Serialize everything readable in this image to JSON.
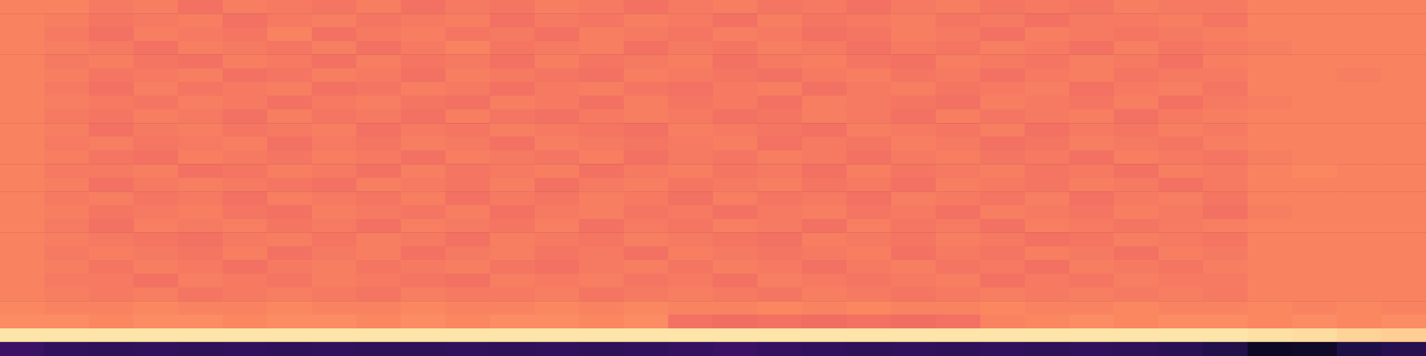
{
  "chart_data": {
    "type": "heatmap",
    "tick_labels": false,
    "grid": false,
    "color_range": [
      0,
      1
    ],
    "cells": [
      [
        0.74,
        0.74,
        0.72,
        0.73,
        0.7,
        0.73,
        0.72,
        0.71,
        0.73,
        0.7,
        0.72,
        0.71,
        0.73,
        0.72,
        0.7,
        0.72,
        0.73,
        0.71,
        0.72,
        0.7,
        0.72,
        0.73,
        0.71,
        0.72,
        0.71,
        0.73,
        0.72,
        0.72,
        0.74,
        0.74,
        0.74,
        0.74
      ],
      [
        0.74,
        0.73,
        0.71,
        0.72,
        0.73,
        0.7,
        0.72,
        0.73,
        0.71,
        0.72,
        0.73,
        0.7,
        0.72,
        0.71,
        0.73,
        0.72,
        0.7,
        0.73,
        0.71,
        0.72,
        0.73,
        0.71,
        0.72,
        0.7,
        0.72,
        0.72,
        0.73,
        0.71,
        0.74,
        0.74,
        0.74,
        0.74
      ],
      [
        0.74,
        0.72,
        0.7,
        0.73,
        0.72,
        0.71,
        0.74,
        0.7,
        0.72,
        0.73,
        0.71,
        0.72,
        0.7,
        0.73,
        0.72,
        0.71,
        0.73,
        0.72,
        0.7,
        0.71,
        0.73,
        0.72,
        0.7,
        0.73,
        0.72,
        0.71,
        0.72,
        0.73,
        0.74,
        0.74,
        0.74,
        0.74
      ],
      [
        0.74,
        0.73,
        0.72,
        0.7,
        0.73,
        0.72,
        0.71,
        0.73,
        0.7,
        0.72,
        0.74,
        0.71,
        0.72,
        0.73,
        0.7,
        0.72,
        0.71,
        0.73,
        0.72,
        0.7,
        0.72,
        0.71,
        0.73,
        0.72,
        0.7,
        0.73,
        0.71,
        0.72,
        0.73,
        0.74,
        0.74,
        0.74
      ],
      [
        0.74,
        0.72,
        0.73,
        0.71,
        0.7,
        0.73,
        0.72,
        0.7,
        0.73,
        0.71,
        0.72,
        0.7,
        0.73,
        0.71,
        0.72,
        0.73,
        0.7,
        0.72,
        0.73,
        0.71,
        0.7,
        0.73,
        0.72,
        0.71,
        0.73,
        0.72,
        0.7,
        0.73,
        0.74,
        0.74,
        0.74,
        0.74
      ],
      [
        0.74,
        0.73,
        0.71,
        0.72,
        0.73,
        0.7,
        0.71,
        0.73,
        0.72,
        0.7,
        0.73,
        0.72,
        0.71,
        0.7,
        0.73,
        0.72,
        0.71,
        0.7,
        0.72,
        0.73,
        0.71,
        0.72,
        0.7,
        0.72,
        0.73,
        0.71,
        0.72,
        0.72,
        0.74,
        0.74,
        0.73,
        0.74
      ],
      [
        0.74,
        0.72,
        0.7,
        0.73,
        0.71,
        0.72,
        0.73,
        0.7,
        0.71,
        0.73,
        0.72,
        0.7,
        0.72,
        0.73,
        0.71,
        0.7,
        0.72,
        0.73,
        0.7,
        0.72,
        0.73,
        0.71,
        0.72,
        0.73,
        0.7,
        0.72,
        0.73,
        0.71,
        0.74,
        0.74,
        0.74,
        0.74
      ],
      [
        0.74,
        0.73,
        0.72,
        0.71,
        0.73,
        0.72,
        0.7,
        0.72,
        0.73,
        0.71,
        0.7,
        0.73,
        0.72,
        0.7,
        0.73,
        0.71,
        0.72,
        0.7,
        0.73,
        0.72,
        0.71,
        0.7,
        0.73,
        0.72,
        0.71,
        0.73,
        0.7,
        0.72,
        0.73,
        0.74,
        0.74,
        0.74
      ],
      [
        0.74,
        0.72,
        0.71,
        0.73,
        0.72,
        0.7,
        0.73,
        0.71,
        0.72,
        0.7,
        0.73,
        0.71,
        0.7,
        0.72,
        0.73,
        0.72,
        0.7,
        0.71,
        0.73,
        0.72,
        0.7,
        0.73,
        0.71,
        0.72,
        0.73,
        0.7,
        0.72,
        0.73,
        0.74,
        0.74,
        0.74,
        0.74
      ],
      [
        0.74,
        0.73,
        0.7,
        0.72,
        0.73,
        0.71,
        0.72,
        0.73,
        0.7,
        0.72,
        0.71,
        0.73,
        0.72,
        0.71,
        0.7,
        0.73,
        0.72,
        0.71,
        0.7,
        0.73,
        0.72,
        0.71,
        0.73,
        0.7,
        0.72,
        0.71,
        0.73,
        0.72,
        0.74,
        0.74,
        0.74,
        0.74
      ],
      [
        0.74,
        0.72,
        0.73,
        0.71,
        0.72,
        0.73,
        0.7,
        0.72,
        0.71,
        0.73,
        0.72,
        0.7,
        0.73,
        0.72,
        0.71,
        0.72,
        0.73,
        0.7,
        0.72,
        0.71,
        0.73,
        0.72,
        0.7,
        0.71,
        0.73,
        0.72,
        0.71,
        0.73,
        0.74,
        0.74,
        0.74,
        0.74
      ],
      [
        0.74,
        0.73,
        0.71,
        0.7,
        0.73,
        0.72,
        0.71,
        0.73,
        0.72,
        0.7,
        0.73,
        0.72,
        0.71,
        0.73,
        0.7,
        0.72,
        0.71,
        0.73,
        0.72,
        0.7,
        0.72,
        0.73,
        0.71,
        0.72,
        0.7,
        0.73,
        0.72,
        0.71,
        0.73,
        0.74,
        0.74,
        0.74
      ],
      [
        0.74,
        0.72,
        0.72,
        0.73,
        0.7,
        0.71,
        0.73,
        0.72,
        0.7,
        0.73,
        0.71,
        0.72,
        0.73,
        0.7,
        0.72,
        0.73,
        0.71,
        0.72,
        0.7,
        0.73,
        0.71,
        0.72,
        0.73,
        0.71,
        0.72,
        0.7,
        0.73,
        0.72,
        0.74,
        0.75,
        0.74,
        0.74
      ],
      [
        0.74,
        0.73,
        0.7,
        0.72,
        0.73,
        0.72,
        0.71,
        0.7,
        0.73,
        0.72,
        0.71,
        0.73,
        0.7,
        0.72,
        0.73,
        0.71,
        0.72,
        0.73,
        0.71,
        0.72,
        0.7,
        0.73,
        0.72,
        0.71,
        0.73,
        0.72,
        0.7,
        0.72,
        0.74,
        0.74,
        0.74,
        0.74
      ],
      [
        0.74,
        0.72,
        0.73,
        0.71,
        0.72,
        0.7,
        0.73,
        0.72,
        0.71,
        0.73,
        0.7,
        0.72,
        0.71,
        0.73,
        0.72,
        0.7,
        0.73,
        0.71,
        0.72,
        0.7,
        0.73,
        0.72,
        0.71,
        0.73,
        0.7,
        0.72,
        0.73,
        0.71,
        0.74,
        0.74,
        0.74,
        0.74
      ],
      [
        0.74,
        0.73,
        0.71,
        0.72,
        0.73,
        0.71,
        0.7,
        0.73,
        0.72,
        0.71,
        0.73,
        0.7,
        0.72,
        0.73,
        0.71,
        0.72,
        0.7,
        0.72,
        0.73,
        0.71,
        0.72,
        0.7,
        0.73,
        0.72,
        0.71,
        0.73,
        0.72,
        0.7,
        0.73,
        0.74,
        0.74,
        0.74
      ],
      [
        0.74,
        0.72,
        0.7,
        0.73,
        0.72,
        0.73,
        0.71,
        0.72,
        0.7,
        0.73,
        0.72,
        0.71,
        0.73,
        0.7,
        0.72,
        0.71,
        0.73,
        0.72,
        0.7,
        0.73,
        0.71,
        0.72,
        0.7,
        0.73,
        0.72,
        0.71,
        0.72,
        0.73,
        0.74,
        0.74,
        0.74,
        0.74
      ],
      [
        0.74,
        0.73,
        0.72,
        0.71,
        0.7,
        0.72,
        0.73,
        0.71,
        0.73,
        0.72,
        0.7,
        0.73,
        0.72,
        0.71,
        0.73,
        0.72,
        0.71,
        0.7,
        0.73,
        0.72,
        0.71,
        0.73,
        0.72,
        0.7,
        0.71,
        0.73,
        0.72,
        0.71,
        0.74,
        0.74,
        0.74,
        0.74
      ],
      [
        0.74,
        0.72,
        0.73,
        0.72,
        0.71,
        0.73,
        0.7,
        0.72,
        0.73,
        0.7,
        0.72,
        0.73,
        0.71,
        0.72,
        0.7,
        0.73,
        0.72,
        0.71,
        0.72,
        0.73,
        0.7,
        0.72,
        0.71,
        0.73,
        0.72,
        0.7,
        0.73,
        0.72,
        0.74,
        0.74,
        0.74,
        0.74
      ],
      [
        0.74,
        0.73,
        0.71,
        0.73,
        0.72,
        0.7,
        0.72,
        0.73,
        0.71,
        0.72,
        0.73,
        0.71,
        0.7,
        0.72,
        0.73,
        0.71,
        0.73,
        0.72,
        0.7,
        0.72,
        0.73,
        0.71,
        0.72,
        0.7,
        0.73,
        0.72,
        0.71,
        0.73,
        0.74,
        0.74,
        0.74,
        0.74
      ],
      [
        0.74,
        0.72,
        0.72,
        0.7,
        0.73,
        0.72,
        0.71,
        0.73,
        0.72,
        0.71,
        0.7,
        0.73,
        0.72,
        0.73,
        0.71,
        0.72,
        0.7,
        0.73,
        0.72,
        0.71,
        0.72,
        0.73,
        0.7,
        0.72,
        0.71,
        0.73,
        0.72,
        0.72,
        0.74,
        0.74,
        0.74,
        0.74
      ],
      [
        0.74,
        0.73,
        0.72,
        0.73,
        0.71,
        0.72,
        0.73,
        0.72,
        0.71,
        0.73,
        0.72,
        0.72,
        0.73,
        0.71,
        0.72,
        0.73,
        0.72,
        0.71,
        0.73,
        0.72,
        0.71,
        0.72,
        0.73,
        0.72,
        0.73,
        0.72,
        0.73,
        0.72,
        0.74,
        0.74,
        0.74,
        0.74
      ],
      [
        0.75,
        0.74,
        0.74,
        0.75,
        0.74,
        0.74,
        0.75,
        0.74,
        0.74,
        0.75,
        0.74,
        0.74,
        0.75,
        0.74,
        0.75,
        0.74,
        0.74,
        0.75,
        0.74,
        0.75,
        0.74,
        0.74,
        0.75,
        0.74,
        0.74,
        0.75,
        0.74,
        0.74,
        0.75,
        0.74,
        0.75,
        0.74
      ],
      [
        0.76,
        0.76,
        0.75,
        0.76,
        0.76,
        0.75,
        0.76,
        0.76,
        0.75,
        0.76,
        0.75,
        0.76,
        0.76,
        0.75,
        0.76,
        0.7,
        0.69,
        0.7,
        0.69,
        0.7,
        0.69,
        0.7,
        0.74,
        0.75,
        0.76,
        0.75,
        0.76,
        0.76,
        0.75,
        0.76,
        0.75,
        0.76
      ],
      [
        0.95,
        0.95,
        0.95,
        0.95,
        0.95,
        0.95,
        0.95,
        0.95,
        0.95,
        0.95,
        0.95,
        0.95,
        0.95,
        0.95,
        0.95,
        0.95,
        0.95,
        0.95,
        0.95,
        0.95,
        0.95,
        0.95,
        0.95,
        0.95,
        0.95,
        0.95,
        0.95,
        0.95,
        0.94,
        0.93,
        0.91,
        0.9
      ],
      [
        0.2,
        0.18,
        0.17,
        0.18,
        0.17,
        0.18,
        0.17,
        0.18,
        0.17,
        0.17,
        0.18,
        0.17,
        0.18,
        0.17,
        0.18,
        0.19,
        0.2,
        0.19,
        0.18,
        0.17,
        0.18,
        0.17,
        0.18,
        0.17,
        0.18,
        0.17,
        0.16,
        0.14,
        0.06,
        0.07,
        0.13,
        0.15
      ]
    ]
  }
}
